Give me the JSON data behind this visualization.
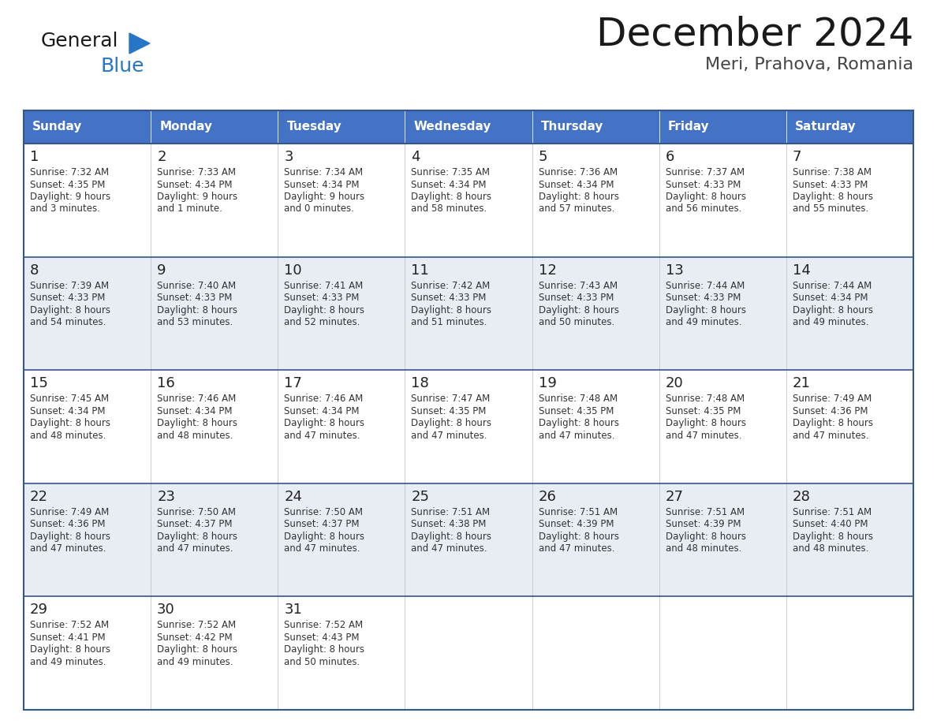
{
  "title": "December 2024",
  "subtitle": "Meri, Prahova, Romania",
  "days_of_week": [
    "Sunday",
    "Monday",
    "Tuesday",
    "Wednesday",
    "Thursday",
    "Friday",
    "Saturday"
  ],
  "header_bg": "#4472C4",
  "header_text": "#FFFFFF",
  "cell_bg_light": "#FFFFFF",
  "cell_bg_dark": "#E8EDF4",
  "grid_line_color": "#34568B",
  "day_number_color": "#222222",
  "info_text_color": "#333333",
  "title_color": "#1a1a1a",
  "subtitle_color": "#444444",
  "logo_general_color": "#1a1a1a",
  "logo_blue_color": "#2776C6",
  "logo_triangle_color": "#2776C6",
  "calendar_data": [
    [
      {
        "day": "1",
        "sunrise": "7:32 AM",
        "sunset": "4:35 PM",
        "daylight_h": "9 hours",
        "daylight_m": "and 3 minutes."
      },
      {
        "day": "2",
        "sunrise": "7:33 AM",
        "sunset": "4:34 PM",
        "daylight_h": "9 hours",
        "daylight_m": "and 1 minute."
      },
      {
        "day": "3",
        "sunrise": "7:34 AM",
        "sunset": "4:34 PM",
        "daylight_h": "9 hours",
        "daylight_m": "and 0 minutes."
      },
      {
        "day": "4",
        "sunrise": "7:35 AM",
        "sunset": "4:34 PM",
        "daylight_h": "8 hours",
        "daylight_m": "and 58 minutes."
      },
      {
        "day": "5",
        "sunrise": "7:36 AM",
        "sunset": "4:34 PM",
        "daylight_h": "8 hours",
        "daylight_m": "and 57 minutes."
      },
      {
        "day": "6",
        "sunrise": "7:37 AM",
        "sunset": "4:33 PM",
        "daylight_h": "8 hours",
        "daylight_m": "and 56 minutes."
      },
      {
        "day": "7",
        "sunrise": "7:38 AM",
        "sunset": "4:33 PM",
        "daylight_h": "8 hours",
        "daylight_m": "and 55 minutes."
      }
    ],
    [
      {
        "day": "8",
        "sunrise": "7:39 AM",
        "sunset": "4:33 PM",
        "daylight_h": "8 hours",
        "daylight_m": "and 54 minutes."
      },
      {
        "day": "9",
        "sunrise": "7:40 AM",
        "sunset": "4:33 PM",
        "daylight_h": "8 hours",
        "daylight_m": "and 53 minutes."
      },
      {
        "day": "10",
        "sunrise": "7:41 AM",
        "sunset": "4:33 PM",
        "daylight_h": "8 hours",
        "daylight_m": "and 52 minutes."
      },
      {
        "day": "11",
        "sunrise": "7:42 AM",
        "sunset": "4:33 PM",
        "daylight_h": "8 hours",
        "daylight_m": "and 51 minutes."
      },
      {
        "day": "12",
        "sunrise": "7:43 AM",
        "sunset": "4:33 PM",
        "daylight_h": "8 hours",
        "daylight_m": "and 50 minutes."
      },
      {
        "day": "13",
        "sunrise": "7:44 AM",
        "sunset": "4:33 PM",
        "daylight_h": "8 hours",
        "daylight_m": "and 49 minutes."
      },
      {
        "day": "14",
        "sunrise": "7:44 AM",
        "sunset": "4:34 PM",
        "daylight_h": "8 hours",
        "daylight_m": "and 49 minutes."
      }
    ],
    [
      {
        "day": "15",
        "sunrise": "7:45 AM",
        "sunset": "4:34 PM",
        "daylight_h": "8 hours",
        "daylight_m": "and 48 minutes."
      },
      {
        "day": "16",
        "sunrise": "7:46 AM",
        "sunset": "4:34 PM",
        "daylight_h": "8 hours",
        "daylight_m": "and 48 minutes."
      },
      {
        "day": "17",
        "sunrise": "7:46 AM",
        "sunset": "4:34 PM",
        "daylight_h": "8 hours",
        "daylight_m": "and 47 minutes."
      },
      {
        "day": "18",
        "sunrise": "7:47 AM",
        "sunset": "4:35 PM",
        "daylight_h": "8 hours",
        "daylight_m": "and 47 minutes."
      },
      {
        "day": "19",
        "sunrise": "7:48 AM",
        "sunset": "4:35 PM",
        "daylight_h": "8 hours",
        "daylight_m": "and 47 minutes."
      },
      {
        "day": "20",
        "sunrise": "7:48 AM",
        "sunset": "4:35 PM",
        "daylight_h": "8 hours",
        "daylight_m": "and 47 minutes."
      },
      {
        "day": "21",
        "sunrise": "7:49 AM",
        "sunset": "4:36 PM",
        "daylight_h": "8 hours",
        "daylight_m": "and 47 minutes."
      }
    ],
    [
      {
        "day": "22",
        "sunrise": "7:49 AM",
        "sunset": "4:36 PM",
        "daylight_h": "8 hours",
        "daylight_m": "and 47 minutes."
      },
      {
        "day": "23",
        "sunrise": "7:50 AM",
        "sunset": "4:37 PM",
        "daylight_h": "8 hours",
        "daylight_m": "and 47 minutes."
      },
      {
        "day": "24",
        "sunrise": "7:50 AM",
        "sunset": "4:37 PM",
        "daylight_h": "8 hours",
        "daylight_m": "and 47 minutes."
      },
      {
        "day": "25",
        "sunrise": "7:51 AM",
        "sunset": "4:38 PM",
        "daylight_h": "8 hours",
        "daylight_m": "and 47 minutes."
      },
      {
        "day": "26",
        "sunrise": "7:51 AM",
        "sunset": "4:39 PM",
        "daylight_h": "8 hours",
        "daylight_m": "and 47 minutes."
      },
      {
        "day": "27",
        "sunrise": "7:51 AM",
        "sunset": "4:39 PM",
        "daylight_h": "8 hours",
        "daylight_m": "and 48 minutes."
      },
      {
        "day": "28",
        "sunrise": "7:51 AM",
        "sunset": "4:40 PM",
        "daylight_h": "8 hours",
        "daylight_m": "and 48 minutes."
      }
    ],
    [
      {
        "day": "29",
        "sunrise": "7:52 AM",
        "sunset": "4:41 PM",
        "daylight_h": "8 hours",
        "daylight_m": "and 49 minutes."
      },
      {
        "day": "30",
        "sunrise": "7:52 AM",
        "sunset": "4:42 PM",
        "daylight_h": "8 hours",
        "daylight_m": "and 49 minutes."
      },
      {
        "day": "31",
        "sunrise": "7:52 AM",
        "sunset": "4:43 PM",
        "daylight_h": "8 hours",
        "daylight_m": "and 50 minutes."
      },
      null,
      null,
      null,
      null
    ]
  ]
}
